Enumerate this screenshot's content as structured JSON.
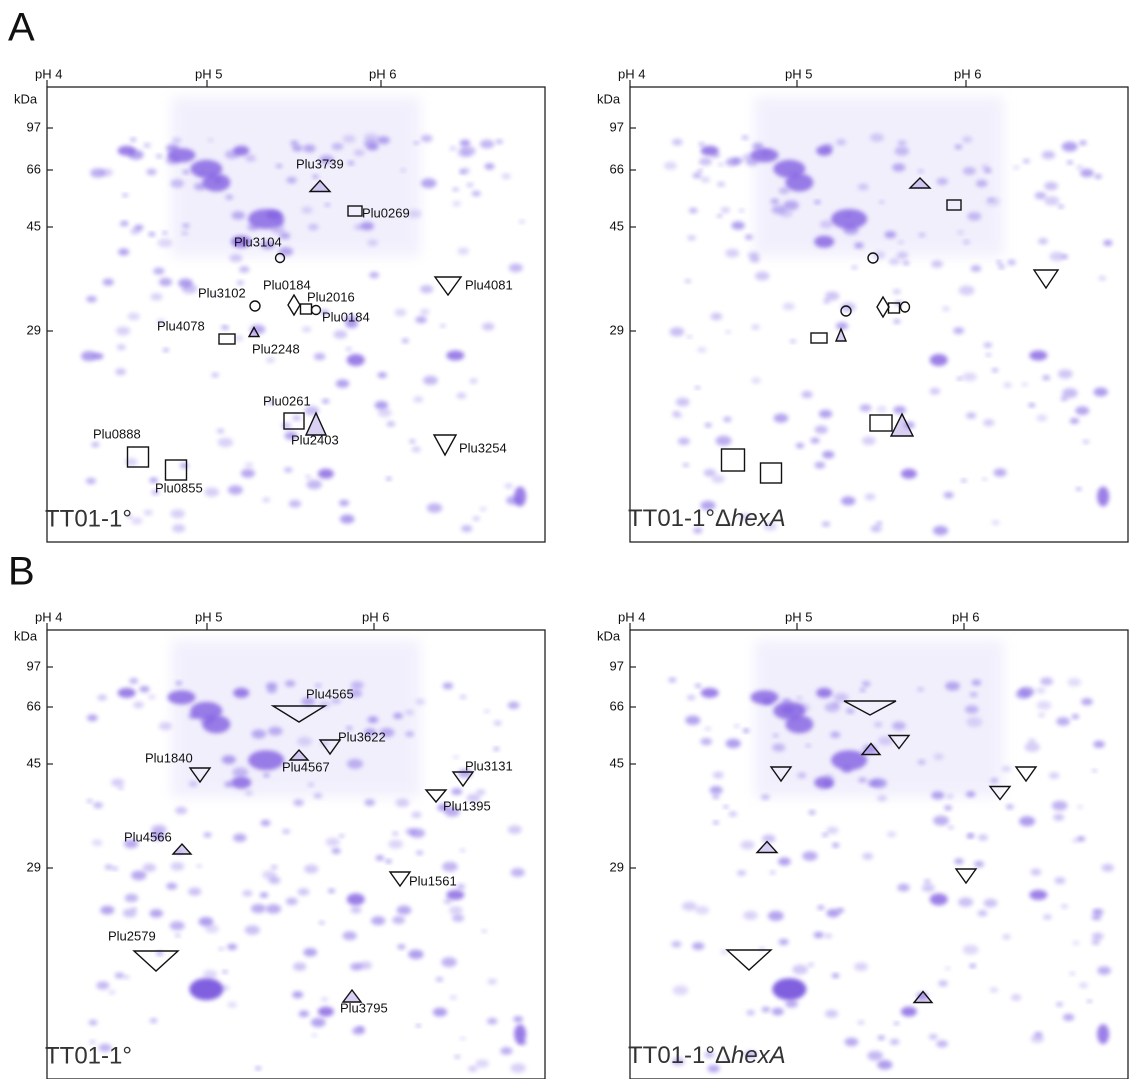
{
  "figure": {
    "panel_labels": [
      "A",
      "B"
    ],
    "ph_ticks": [
      "pH 4",
      "pH 5",
      "pH 6"
    ],
    "mw_unit": "kDa",
    "mw_ticks": [
      97,
      66,
      45,
      29
    ],
    "strains": {
      "wild_type": "TT01-1°",
      "mutant_prefix": "TT01-1°Δ",
      "mutant_gene": "hexA"
    },
    "panel_a_proteins": [
      "Plu3739",
      "Plu0269",
      "Plu3104",
      "Plu0184",
      "Plu3102",
      "Plu2016",
      "Plu0184",
      "Plu4081",
      "Plu4078",
      "Plu2248",
      "Plu0261",
      "Plu2403",
      "Plu0888",
      "Plu3254",
      "Plu0855"
    ],
    "panel_b_proteins": [
      "Plu4565",
      "Plu3622",
      "Plu1840",
      "Plu4567",
      "Plu3131",
      "Plu1395",
      "Plu4566",
      "Plu1561",
      "Plu2579",
      "Plu3795"
    ]
  }
}
